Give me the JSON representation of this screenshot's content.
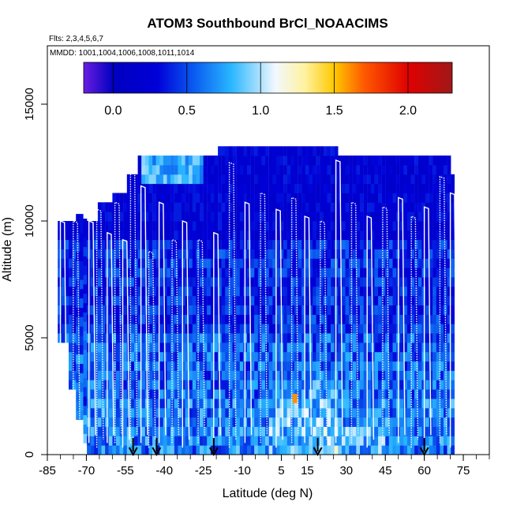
{
  "chart_data": {
    "type": "heatmap",
    "title": "ATOM3 Southbound BrCl_NOAACIMS",
    "flights_label": "Flts: 2,3,4,5,6,7",
    "mmdd_label": "MMDD: 1001,1004,1006,1008,1011,1014",
    "xlabel": "Latitude (deg N)",
    "ylabel": "Altitude (m)",
    "xlim": [
      -85,
      85
    ],
    "ylim": [
      0,
      17500
    ],
    "x_ticks": [
      -85,
      -70,
      -55,
      -40,
      -25,
      -10,
      5,
      15,
      30,
      45,
      60,
      75
    ],
    "x_tick_labels": [
      "-85",
      "-70",
      "-55",
      "-40",
      "-25",
      "-10",
      "5",
      "15",
      "30",
      "45",
      "60",
      "75"
    ],
    "y_ticks": [
      0,
      5000,
      10000,
      15000
    ],
    "y_tick_labels": [
      "0",
      "5000",
      "10000",
      "15000"
    ],
    "colorbar": {
      "range": [
        -0.2,
        2.3
      ],
      "ticks": [
        0.0,
        0.5,
        1.0,
        1.5,
        2.0
      ],
      "tick_labels": [
        "0.0",
        "0.5",
        "1.0",
        "1.5",
        "2.0"
      ]
    },
    "arrow_latitudes": [
      -52,
      -43,
      -21,
      19,
      60
    ],
    "highlight_cell": {
      "lat": 10,
      "alt": 2200,
      "value": 1.5
    },
    "flight_track_columns": [
      {
        "lat": -80,
        "top": 10000
      },
      {
        "lat": -75,
        "top": 10000
      },
      {
        "lat": -69,
        "top": 10000
      },
      {
        "lat": -66,
        "top": 10500
      },
      {
        "lat": -62,
        "top": 9500
      },
      {
        "lat": -59,
        "top": 10800
      },
      {
        "lat": -56,
        "top": 9200
      },
      {
        "lat": -53,
        "top": 12100
      },
      {
        "lat": -49,
        "top": 11500
      },
      {
        "lat": -46,
        "top": 8700
      },
      {
        "lat": -42,
        "top": 10800
      },
      {
        "lat": -37,
        "top": 9200
      },
      {
        "lat": -33,
        "top": 10000
      },
      {
        "lat": -27,
        "top": 9200
      },
      {
        "lat": -21,
        "top": 9500
      },
      {
        "lat": -15,
        "top": 12500
      },
      {
        "lat": -9,
        "top": 10800
      },
      {
        "lat": -3,
        "top": 11200
      },
      {
        "lat": 3,
        "top": 10500
      },
      {
        "lat": 9,
        "top": 11000
      },
      {
        "lat": 14,
        "top": 10200
      },
      {
        "lat": 20,
        "top": 10000
      },
      {
        "lat": 26,
        "top": 12600
      },
      {
        "lat": 32,
        "top": 10800
      },
      {
        "lat": 38,
        "top": 10200
      },
      {
        "lat": 44,
        "top": 10600
      },
      {
        "lat": 50,
        "top": 11000
      },
      {
        "lat": 55,
        "top": 10200
      },
      {
        "lat": 60,
        "top": 10600
      },
      {
        "lat": 66,
        "top": 11900
      },
      {
        "lat": 70,
        "top": 11200
      }
    ],
    "colors": {
      "background_field": "#0a14c8",
      "track": "#ffffff",
      "frame": "#000000"
    }
  }
}
